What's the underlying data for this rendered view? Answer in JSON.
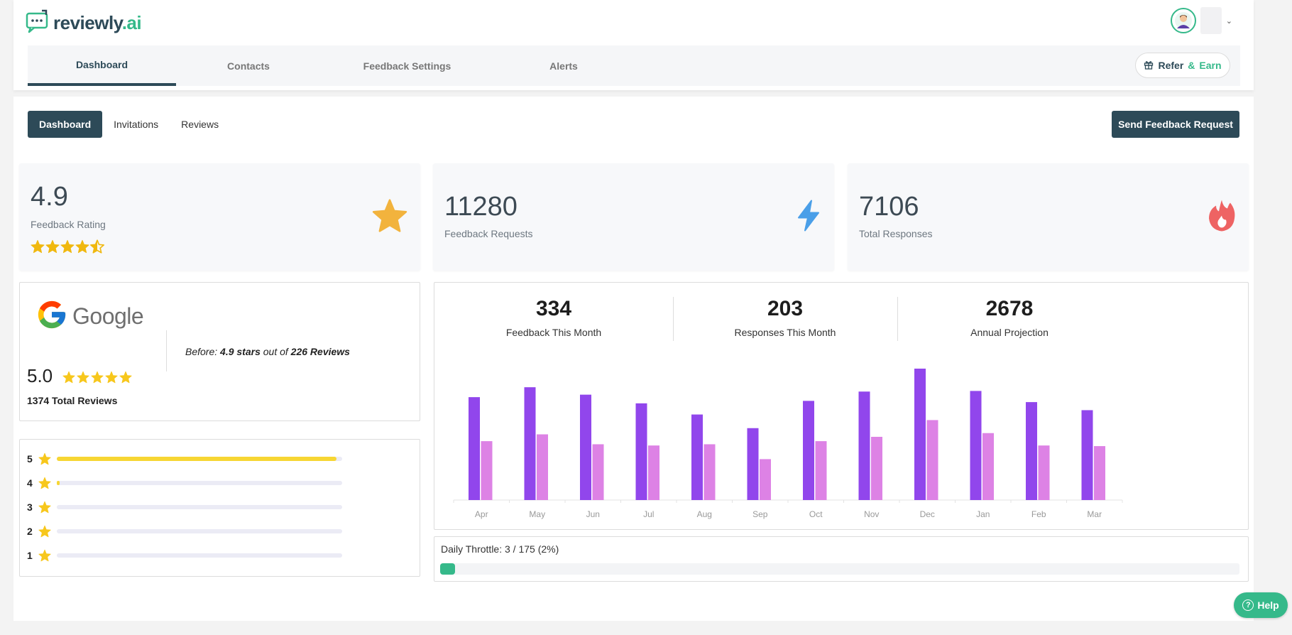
{
  "app": {
    "logo_main": "reviewly",
    "logo_suffix": ".ai"
  },
  "nav": {
    "tabs": [
      {
        "label": "Dashboard"
      },
      {
        "label": "Contacts"
      },
      {
        "label": "Feedback Settings"
      },
      {
        "label": "Alerts"
      }
    ],
    "refer_label": "Refer",
    "refer_amp": "&",
    "refer_earn": "Earn"
  },
  "subtabs": [
    {
      "label": "Dashboard"
    },
    {
      "label": "Invitations"
    },
    {
      "label": "Reviews"
    }
  ],
  "send_button": "Send Feedback Request",
  "stats": [
    {
      "value": "4.9",
      "label": "Feedback Rating",
      "icon": "star-icon",
      "color": "#f2b33d"
    },
    {
      "value": "11280",
      "label": "Feedback Requests",
      "icon": "lightning-icon",
      "color": "#4a9fe8"
    },
    {
      "value": "7106",
      "label": "Total Responses",
      "icon": "fire-icon",
      "color": "#ee6363"
    }
  ],
  "rating_stars": 4.5,
  "google": {
    "word": "Google",
    "before_prefix": "Before:",
    "before_stars": "4.9 stars",
    "before_mid": "out of",
    "before_reviews": "226 Reviews",
    "score": "5.0",
    "stars": 5,
    "total": "1374 Total Reviews"
  },
  "distribution": [
    {
      "star": "5",
      "fraction": 0.98
    },
    {
      "star": "4",
      "fraction": 0.01
    },
    {
      "star": "3",
      "fraction": 0.0
    },
    {
      "star": "2",
      "fraction": 0.0
    },
    {
      "star": "1",
      "fraction": 0.0
    }
  ],
  "metrics": [
    {
      "value": "334",
      "label": "Feedback This Month"
    },
    {
      "value": "203",
      "label": "Responses This Month"
    },
    {
      "value": "2678",
      "label": "Annual Projection"
    }
  ],
  "chart_data": {
    "type": "bar",
    "categories": [
      "Apr",
      "May",
      "Jun",
      "Jul",
      "Aug",
      "Sep",
      "Oct",
      "Nov",
      "Dec",
      "Jan",
      "Feb",
      "Mar"
    ],
    "series": [
      {
        "values": [
          830,
          910,
          850,
          780,
          690,
          580,
          800,
          875,
          1060,
          880,
          790,
          725
        ],
        "color": "#9146ec"
      },
      {
        "values": [
          475,
          530,
          450,
          440,
          450,
          330,
          475,
          510,
          645,
          540,
          440,
          435
        ],
        "color": "#dd82e5"
      }
    ],
    "ylim": [
      0,
      1100
    ],
    "xlabel": "",
    "ylabel": "",
    "grid": false,
    "legend": "none"
  },
  "throttle": {
    "label": "Daily Throttle: 3 / 175 (2%)",
    "fraction": 0.017
  },
  "help_label": "Help",
  "help_glyph": "?"
}
